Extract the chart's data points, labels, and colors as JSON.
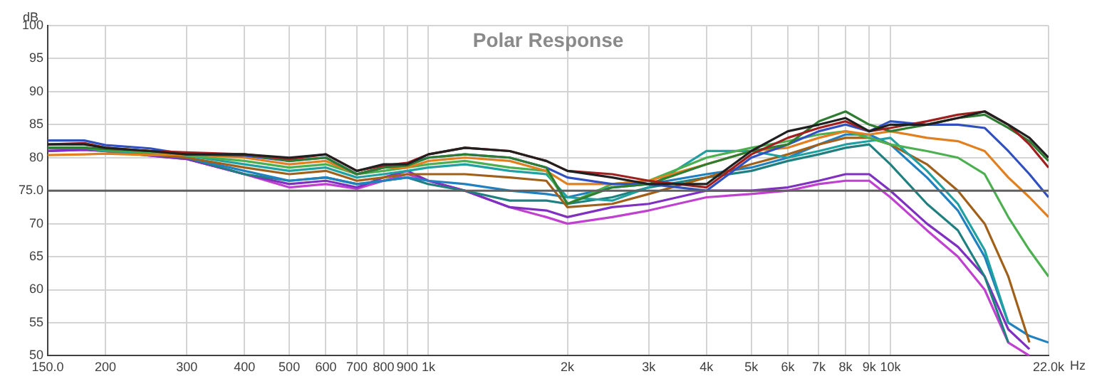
{
  "chart_data": {
    "type": "line",
    "title": "Polar Response",
    "xlabel": "Hz",
    "ylabel": "dB",
    "log": "x",
    "grid": true,
    "legend": false,
    "marker": "none",
    "line_style": "solid",
    "x": [
      150,
      180,
      200,
      250,
      300,
      400,
      500,
      600,
      700,
      800,
      900,
      1000,
      1200,
      1500,
      1800,
      2000,
      2500,
      3000,
      4000,
      5000,
      6000,
      7000,
      8000,
      9000,
      10000,
      12000,
      14000,
      16000,
      18000,
      20000,
      22000
    ],
    "xlim": [
      150,
      22000
    ],
    "xticks": [
      {
        "value": 150,
        "label": "150.0"
      },
      200,
      300,
      400,
      500,
      600,
      700,
      800,
      900,
      {
        "value": 1000,
        "label": "1k"
      },
      {
        "value": 2000,
        "label": "2k"
      },
      {
        "value": 3000,
        "label": "3k"
      },
      {
        "value": 4000,
        "label": "4k"
      },
      {
        "value": 5000,
        "label": "5k"
      },
      {
        "value": 6000,
        "label": "6k"
      },
      {
        "value": 7000,
        "label": "7k"
      },
      {
        "value": 8000,
        "label": "8k"
      },
      {
        "value": 9000,
        "label": "9k"
      },
      {
        "value": 10000,
        "label": "10k"
      },
      {
        "value": 22000,
        "label": "22.0k"
      }
    ],
    "ylim": [
      50,
      100
    ],
    "yticks": [
      50,
      55,
      60,
      65,
      70,
      {
        "value": 75,
        "label": "75.0"
      },
      80,
      85,
      90,
      95,
      100
    ],
    "ref_lines": [
      {
        "axis": "y",
        "value": 75,
        "color": "#606060"
      }
    ],
    "series": [
      {
        "color": "#202020",
        "values": [
          82,
          82,
          81.5,
          81,
          80.5,
          80.5,
          80,
          80.5,
          78,
          79,
          79,
          80.5,
          81.5,
          81,
          79.5,
          78,
          77,
          76,
          76,
          81,
          84,
          85,
          86,
          84,
          85,
          85,
          86,
          87,
          85,
          83,
          80
        ]
      },
      {
        "color": "#a02020",
        "values": [
          82,
          82.2,
          81.5,
          81,
          80.8,
          80.5,
          79.8,
          80.5,
          78,
          78.8,
          79.2,
          80.5,
          81.5,
          81,
          79.5,
          78,
          77.5,
          76.5,
          75.5,
          80.5,
          83,
          84.5,
          85.5,
          84,
          84.5,
          85.5,
          86.5,
          87,
          85,
          82,
          78.5
        ]
      },
      {
        "color": "#2e7d32",
        "values": [
          81.5,
          81.5,
          81.3,
          81,
          80.5,
          80.5,
          79.5,
          80,
          77.5,
          78.5,
          78.8,
          80,
          80.5,
          80,
          78.5,
          73,
          75.5,
          76,
          79,
          81,
          82,
          85.5,
          87,
          85,
          84,
          85,
          86,
          86.5,
          84.5,
          82.5,
          79.5
        ]
      },
      {
        "color": "#3050c0",
        "values": [
          82.6,
          82.6,
          81.9,
          81.4,
          80.5,
          80.3,
          79.5,
          80,
          77.5,
          78.5,
          79,
          80,
          80.5,
          80,
          78.5,
          77,
          76,
          76,
          75,
          80,
          82,
          84,
          85,
          84,
          85.5,
          85,
          85,
          84.5,
          81,
          77.5,
          74
        ]
      },
      {
        "color": "#e08020",
        "values": [
          80.4,
          80.5,
          80.6,
          80.4,
          80.5,
          80,
          79,
          79.5,
          77.5,
          78.5,
          78.5,
          79.5,
          80,
          79.5,
          78,
          76,
          76,
          76.5,
          79,
          81,
          81.5,
          83,
          84,
          83.5,
          84,
          83,
          82.5,
          81,
          77,
          74,
          71
        ]
      },
      {
        "color": "#4caf50",
        "values": [
          81.5,
          81.5,
          81.2,
          80.8,
          80.3,
          79.5,
          78.5,
          79,
          77.5,
          78,
          78.5,
          79,
          79.5,
          78.5,
          78,
          73,
          76,
          76.5,
          80,
          81.5,
          82.5,
          83.5,
          84,
          83,
          82,
          81,
          80,
          77.5,
          71,
          66,
          62
        ]
      },
      {
        "color": "#20a0a0",
        "values": [
          81.5,
          81.5,
          81,
          80.8,
          80.3,
          79,
          78,
          78.5,
          77,
          77.5,
          78,
          78.5,
          79,
          78,
          77.5,
          74,
          73.5,
          75.5,
          81,
          81,
          80,
          81,
          82,
          82.5,
          83,
          78,
          73,
          66,
          55,
          null,
          null
        ]
      },
      {
        "color": "#a0601a",
        "values": [
          81.5,
          81.5,
          81,
          80.5,
          80,
          78.5,
          77.5,
          78,
          76.5,
          77,
          77.5,
          77.5,
          77.5,
          77,
          76.5,
          72.5,
          73,
          74.5,
          77,
          79,
          80.5,
          82,
          83,
          83,
          82,
          79,
          75,
          70,
          62,
          52,
          null
        ]
      },
      {
        "color": "#2080c0",
        "values": [
          81.5,
          81.5,
          81,
          80.5,
          80,
          78,
          76.5,
          77,
          76,
          76.5,
          77,
          76.5,
          76,
          75,
          74.5,
          74,
          75.5,
          76,
          77.5,
          78.5,
          80,
          82,
          83.5,
          83.5,
          82,
          77,
          72,
          65,
          55,
          53,
          52
        ]
      },
      {
        "color": "#208080",
        "values": [
          81.5,
          81.5,
          81,
          80.5,
          80,
          77.5,
          76.5,
          77,
          76,
          76.5,
          77,
          76,
          75,
          73.5,
          73.5,
          73,
          74,
          75.5,
          77,
          78,
          79.5,
          80.5,
          81.5,
          82,
          79,
          73,
          69,
          62,
          52,
          null,
          null
        ]
      },
      {
        "color": "#8030c0",
        "values": [
          81,
          81.2,
          81,
          80.3,
          79.8,
          77.5,
          76,
          76.5,
          75.5,
          77,
          78,
          76.5,
          75,
          72.5,
          72,
          71,
          72.5,
          73,
          75,
          75,
          75.5,
          76.5,
          77.5,
          77.5,
          75,
          70,
          66.5,
          62,
          54,
          51,
          null
        ]
      },
      {
        "color": "#c040d0",
        "values": [
          81,
          81.2,
          81,
          80.3,
          79.8,
          77.5,
          75.5,
          76,
          75.3,
          76.5,
          77.5,
          76.5,
          75,
          72.5,
          71,
          70,
          71,
          72,
          74,
          74.5,
          75,
          76,
          76.5,
          76.5,
          74,
          69,
          65,
          60,
          52,
          50,
          null
        ]
      }
    ]
  }
}
